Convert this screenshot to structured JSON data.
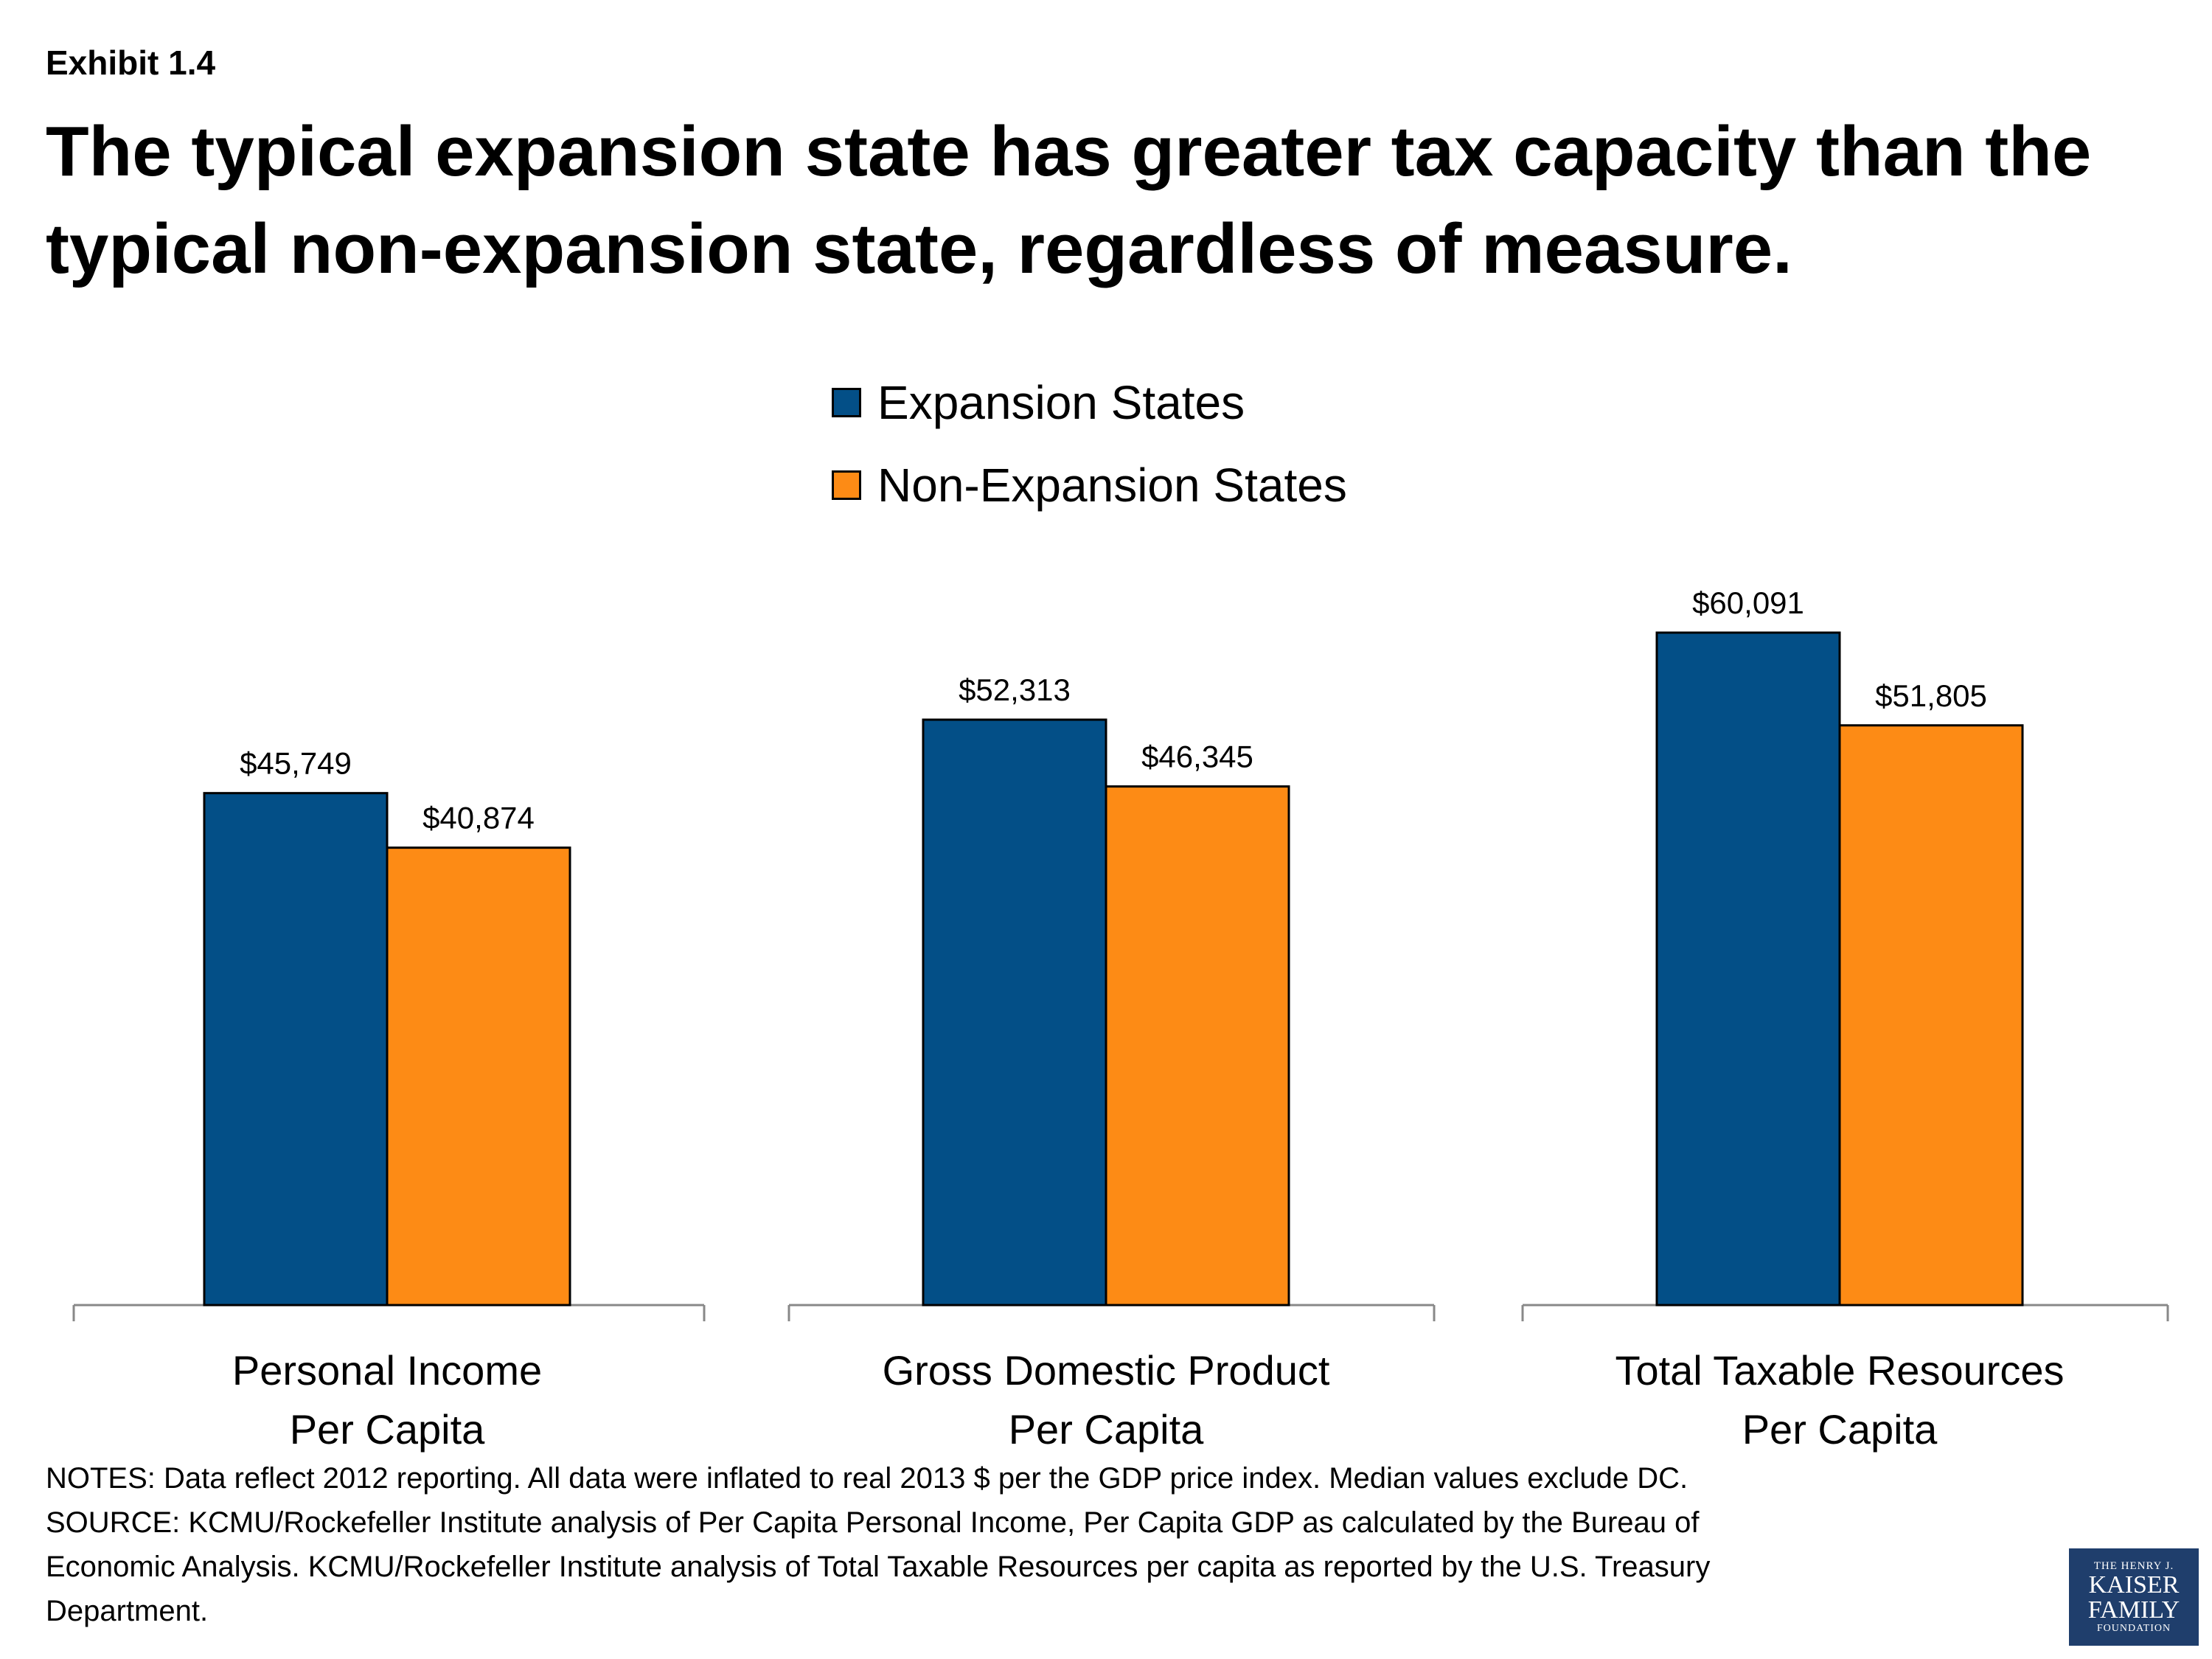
{
  "exhibit_label": "Exhibit 1.4",
  "title": "The typical expansion state has greater tax capacity than the typical non-expansion state, regardless of measure.",
  "notes": [
    "NOTES: Data reflect 2012 reporting. All data were inflated to real 2013 $ per the GDP price index. Median values exclude DC.",
    "SOURCE: KCMU/Rockefeller Institute analysis of Per Capita Personal Income, Per Capita GDP as calculated by the Bureau of",
    "Economic Analysis. KCMU/Rockefeller Institute analysis of Total Taxable Resources per capita as reported by the U.S. Treasury",
    "Department."
  ],
  "logo": {
    "line1": "THE HENRY J.",
    "line2": "KAISER",
    "line3": "FAMILY",
    "line4": "FOUNDATION"
  },
  "colors": {
    "expansion": "#034f87",
    "non_expansion": "#fd8b15",
    "logo_bg": "#1f3e6c"
  },
  "chart_data": {
    "type": "bar",
    "categories": [
      [
        "Personal Income",
        "Per Capita"
      ],
      [
        "Gross Domestic Product",
        "Per Capita"
      ],
      [
        "Total Taxable Resources",
        "Per Capita"
      ]
    ],
    "series": [
      {
        "name": "Expansion States",
        "values": [
          45749,
          52313,
          60091
        ],
        "labels": [
          "$45,749",
          "$52,313",
          "$60,091"
        ]
      },
      {
        "name": "Non-Expansion States",
        "values": [
          40874,
          46345,
          51805
        ],
        "labels": [
          "$40,874",
          "$46,345",
          "$51,805"
        ]
      }
    ],
    "ylim": [
      0,
      60091
    ],
    "legend_position": "top-center",
    "grid": false
  }
}
